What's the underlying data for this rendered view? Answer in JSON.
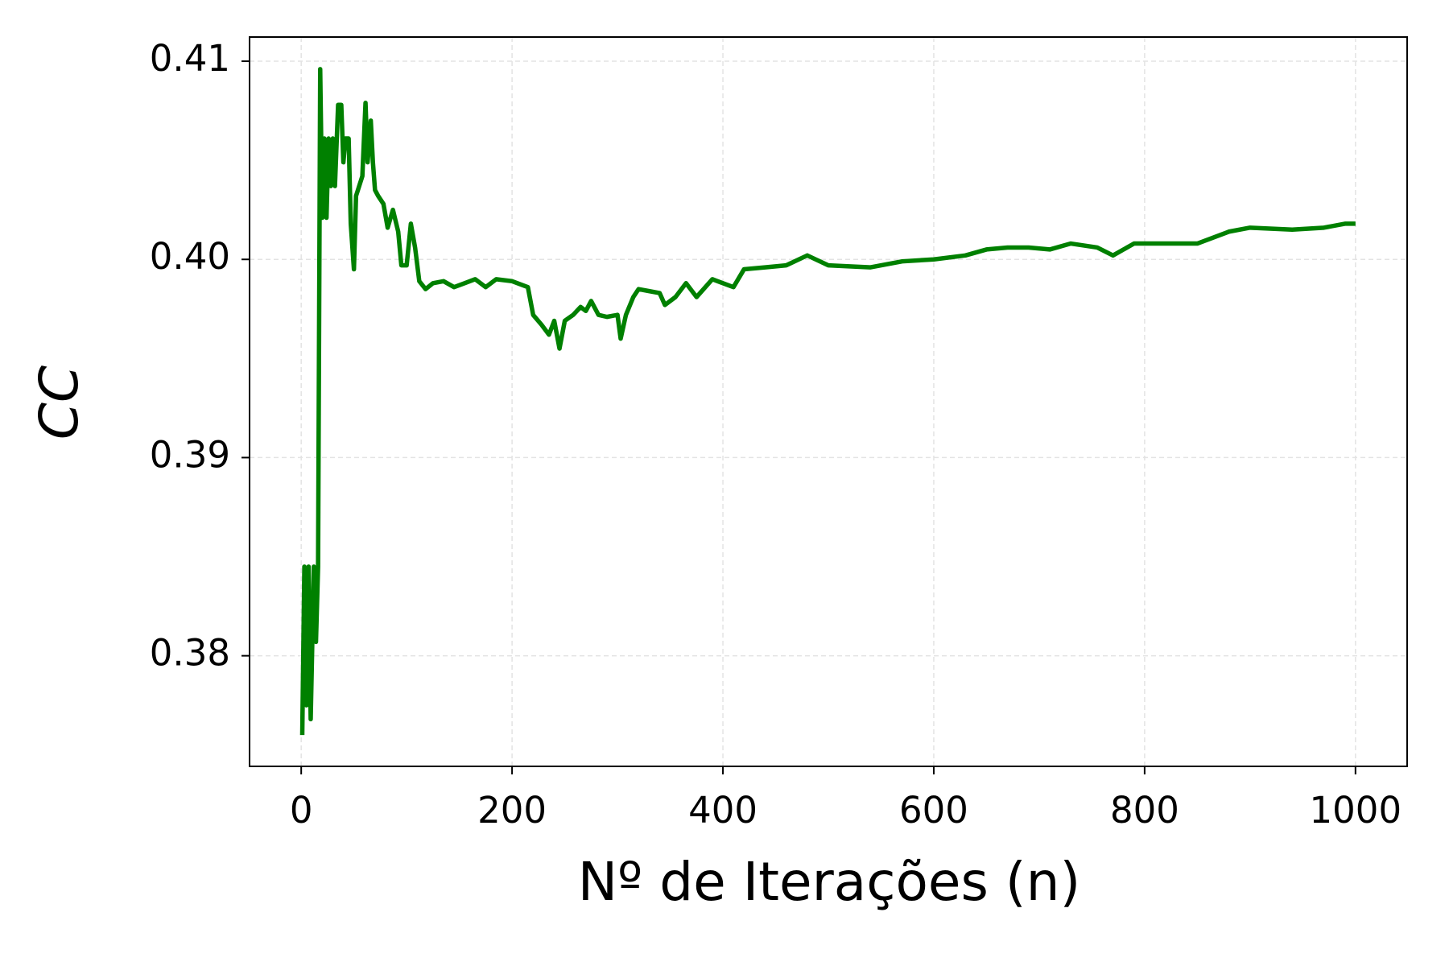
{
  "chart_data": {
    "type": "line",
    "x_label": "Nº de Iterações (n)",
    "y_label": "CC",
    "color": "#008000",
    "grid": true,
    "xlim": [
      -49,
      1049
    ],
    "ylim": [
      0.37442,
      0.41122
    ],
    "xticks": [
      0,
      200,
      400,
      600,
      800,
      1000
    ],
    "yticks": [
      0.38,
      0.39,
      {
        "value": 0.4,
        "label": "0.40"
      },
      0.41
    ],
    "x": [
      1,
      3,
      5,
      7,
      9,
      12,
      14,
      16,
      18,
      20,
      22,
      24,
      26,
      28,
      30,
      32,
      35,
      38,
      40,
      42,
      45,
      47,
      50,
      52,
      55,
      58,
      61,
      63,
      66,
      68,
      70,
      73,
      78,
      82,
      87,
      92,
      95,
      100,
      104,
      108,
      112,
      118,
      125,
      135,
      145,
      155,
      165,
      175,
      185,
      200,
      215,
      220,
      228,
      235,
      240,
      245,
      250,
      258,
      265,
      270,
      275,
      282,
      290,
      300,
      303,
      308,
      315,
      320,
      330,
      340,
      345,
      355,
      365,
      375,
      390,
      410,
      420,
      440,
      460,
      480,
      500,
      540,
      570,
      600,
      630,
      650,
      670,
      690,
      710,
      730,
      755,
      770,
      790,
      820,
      850,
      880,
      900,
      940,
      970,
      990,
      1000
    ],
    "values": [
      0.376,
      0.3845,
      0.3775,
      0.3845,
      0.3768,
      0.3845,
      0.3807,
      0.3845,
      0.4096,
      0.4021,
      0.4061,
      0.4021,
      0.4061,
      0.4037,
      0.4061,
      0.4037,
      0.4078,
      0.4078,
      0.4049,
      0.4061,
      0.4061,
      0.4018,
      0.3995,
      0.4032,
      0.4037,
      0.4042,
      0.4079,
      0.4049,
      0.407,
      0.4049,
      0.4035,
      0.4032,
      0.4028,
      0.4016,
      0.4025,
      0.4014,
      0.3997,
      0.3997,
      0.4018,
      0.4006,
      0.3989,
      0.3985,
      0.3988,
      0.3989,
      0.3986,
      0.3988,
      0.399,
      0.3986,
      0.399,
      0.3989,
      0.3986,
      0.3972,
      0.3967,
      0.3962,
      0.3969,
      0.3955,
      0.3969,
      0.3972,
      0.3976,
      0.3974,
      0.3979,
      0.3972,
      0.3971,
      0.3972,
      0.396,
      0.3972,
      0.3981,
      0.3985,
      0.3984,
      0.3983,
      0.3977,
      0.3981,
      0.3988,
      0.3981,
      0.399,
      0.3986,
      0.3995,
      0.3996,
      0.3997,
      0.4002,
      0.3997,
      0.3996,
      0.3999,
      0.4,
      0.4002,
      0.4005,
      0.4006,
      0.4006,
      0.4005,
      0.4008,
      0.4006,
      0.4002,
      0.4008,
      0.4008,
      0.4008,
      0.4014,
      0.4016,
      0.4015,
      0.4016,
      0.4018,
      0.4018
    ]
  }
}
